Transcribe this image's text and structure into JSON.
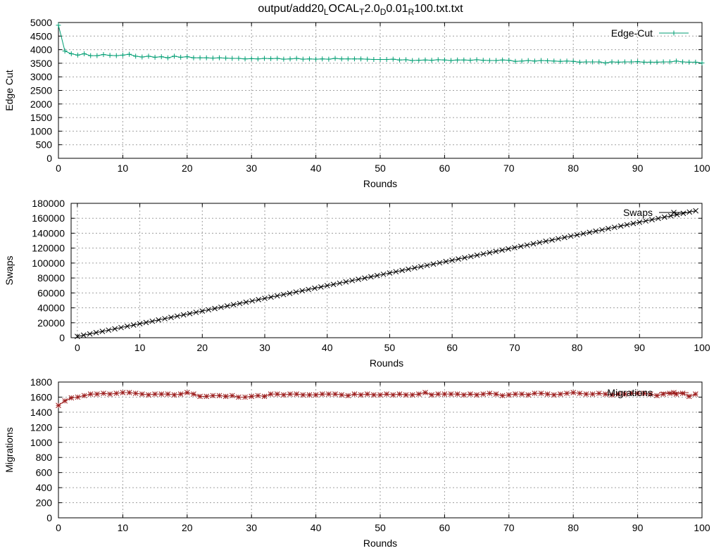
{
  "figure": {
    "title_parts": [
      {
        "text": "output/add20",
        "sub": false
      },
      {
        "text": "L",
        "sub": true
      },
      {
        "text": "OCAL",
        "sub": false
      },
      {
        "text": "T",
        "sub": true
      },
      {
        "text": "2.0",
        "sub": false
      },
      {
        "text": "D",
        "sub": true
      },
      {
        "text": "0.01",
        "sub": false
      },
      {
        "text": "R",
        "sub": true
      },
      {
        "text": "100.txt.txt",
        "sub": false
      }
    ]
  },
  "chart_data": [
    {
      "type": "line",
      "xlabel": "Rounds",
      "ylabel": "Edge Cut",
      "xlim": [
        0,
        100
      ],
      "ylim": [
        0,
        5000
      ],
      "xticks": [
        0,
        10,
        20,
        30,
        40,
        50,
        60,
        70,
        80,
        90,
        100
      ],
      "yticks": [
        0,
        500,
        1000,
        1500,
        2000,
        2500,
        3000,
        3500,
        4000,
        4500,
        5000
      ],
      "grid": true,
      "legend_position": "top-right",
      "series": [
        {
          "name": "Edge-Cut",
          "color": "#009e73",
          "marker": "plus",
          "x": [
            0,
            1,
            2,
            3,
            4,
            5,
            6,
            7,
            8,
            9,
            10,
            11,
            12,
            13,
            14,
            15,
            16,
            17,
            18,
            19,
            20,
            21,
            22,
            23,
            24,
            25,
            26,
            27,
            28,
            29,
            30,
            31,
            32,
            33,
            34,
            35,
            36,
            37,
            38,
            39,
            40,
            41,
            42,
            43,
            44,
            45,
            46,
            47,
            48,
            49,
            50,
            51,
            52,
            53,
            54,
            55,
            56,
            57,
            58,
            59,
            60,
            61,
            62,
            63,
            64,
            65,
            66,
            67,
            68,
            69,
            70,
            71,
            72,
            73,
            74,
            75,
            76,
            77,
            78,
            79,
            80,
            81,
            82,
            83,
            84,
            85,
            86,
            87,
            88,
            89,
            90,
            91,
            92,
            93,
            94,
            95,
            96,
            97,
            98,
            99,
            100
          ],
          "values": [
            4900,
            3950,
            3850,
            3800,
            3850,
            3780,
            3780,
            3820,
            3790,
            3780,
            3800,
            3830,
            3760,
            3730,
            3760,
            3720,
            3740,
            3700,
            3760,
            3720,
            3740,
            3700,
            3700,
            3700,
            3690,
            3700,
            3690,
            3680,
            3680,
            3660,
            3670,
            3660,
            3680,
            3670,
            3680,
            3650,
            3660,
            3680,
            3650,
            3660,
            3650,
            3660,
            3650,
            3680,
            3660,
            3660,
            3660,
            3660,
            3650,
            3640,
            3640,
            3640,
            3650,
            3620,
            3630,
            3600,
            3610,
            3620,
            3610,
            3630,
            3620,
            3600,
            3620,
            3620,
            3610,
            3630,
            3610,
            3600,
            3600,
            3620,
            3610,
            3570,
            3580,
            3600,
            3580,
            3600,
            3590,
            3580,
            3570,
            3580,
            3570,
            3540,
            3550,
            3550,
            3550,
            3510,
            3550,
            3540,
            3550,
            3550,
            3560,
            3540,
            3540,
            3540,
            3550,
            3550,
            3580,
            3550,
            3540,
            3540,
            3510
          ]
        }
      ]
    },
    {
      "type": "line",
      "xlabel": "Rounds",
      "ylabel": "Swaps",
      "xlim": [
        -1,
        100
      ],
      "ylim": [
        0,
        180000
      ],
      "xticks": [
        0,
        10,
        20,
        30,
        40,
        50,
        60,
        70,
        80,
        90,
        100
      ],
      "yticks": [
        0,
        20000,
        40000,
        60000,
        80000,
        100000,
        120000,
        140000,
        160000,
        180000
      ],
      "grid": true,
      "legend_position": "top-right",
      "series": [
        {
          "name": "Swaps",
          "color": "#000000",
          "marker": "cross",
          "x": [
            0,
            1,
            2,
            3,
            4,
            5,
            6,
            7,
            8,
            9,
            10,
            11,
            12,
            13,
            14,
            15,
            16,
            17,
            18,
            19,
            20,
            21,
            22,
            23,
            24,
            25,
            26,
            27,
            28,
            29,
            30,
            31,
            32,
            33,
            34,
            35,
            36,
            37,
            38,
            39,
            40,
            41,
            42,
            43,
            44,
            45,
            46,
            47,
            48,
            49,
            50,
            51,
            52,
            53,
            54,
            55,
            56,
            57,
            58,
            59,
            60,
            61,
            62,
            63,
            64,
            65,
            66,
            67,
            68,
            69,
            70,
            71,
            72,
            73,
            74,
            75,
            76,
            77,
            78,
            79,
            80,
            81,
            82,
            83,
            84,
            85,
            86,
            87,
            88,
            89,
            90,
            91,
            92,
            93,
            94,
            95,
            96,
            97,
            98,
            99
          ],
          "values": [
            1700,
            3400,
            5100,
            6800,
            8500,
            10200,
            11900,
            13600,
            15300,
            17000,
            18700,
            20400,
            22100,
            23800,
            25500,
            27200,
            28900,
            30600,
            32300,
            34000,
            35700,
            37400,
            39100,
            40800,
            42500,
            44200,
            45900,
            47600,
            49300,
            51000,
            52700,
            54400,
            56100,
            57800,
            59500,
            61200,
            62900,
            64600,
            66300,
            68000,
            69700,
            71400,
            73100,
            74800,
            76500,
            78200,
            79900,
            81600,
            83300,
            85000,
            86700,
            88400,
            90100,
            91800,
            93500,
            95200,
            96900,
            98600,
            100300,
            102000,
            103700,
            105400,
            107100,
            108800,
            110500,
            112200,
            113900,
            115600,
            117300,
            119000,
            120700,
            122400,
            124100,
            125800,
            127500,
            129200,
            130900,
            132600,
            134300,
            136000,
            137700,
            139400,
            141100,
            142800,
            144500,
            146200,
            147900,
            149600,
            151300,
            153000,
            154700,
            156400,
            158100,
            159800,
            161500,
            163200,
            164900,
            166600,
            168300,
            170000
          ]
        }
      ]
    },
    {
      "type": "line",
      "xlabel": "Rounds",
      "ylabel": "Migrations",
      "xlim": [
        0,
        100
      ],
      "ylim": [
        0,
        1800
      ],
      "xticks": [
        0,
        10,
        20,
        30,
        40,
        50,
        60,
        70,
        80,
        90,
        100
      ],
      "yticks": [
        0,
        200,
        400,
        600,
        800,
        1000,
        1200,
        1400,
        1600,
        1800
      ],
      "grid": true,
      "legend_position": "top-right",
      "series": [
        {
          "name": "Migrations",
          "color": "#9b1b1b",
          "marker": "star",
          "x": [
            0,
            1,
            2,
            3,
            4,
            5,
            6,
            7,
            8,
            9,
            10,
            11,
            12,
            13,
            14,
            15,
            16,
            17,
            18,
            19,
            20,
            21,
            22,
            23,
            24,
            25,
            26,
            27,
            28,
            29,
            30,
            31,
            32,
            33,
            34,
            35,
            36,
            37,
            38,
            39,
            40,
            41,
            42,
            43,
            44,
            45,
            46,
            47,
            48,
            49,
            50,
            51,
            52,
            53,
            54,
            55,
            56,
            57,
            58,
            59,
            60,
            61,
            62,
            63,
            64,
            65,
            66,
            67,
            68,
            69,
            70,
            71,
            72,
            73,
            74,
            75,
            76,
            77,
            78,
            79,
            80,
            81,
            82,
            83,
            84,
            85,
            86,
            87,
            88,
            89,
            90,
            91,
            92,
            93,
            94,
            95,
            96,
            97,
            98,
            99
          ],
          "values": [
            1490,
            1550,
            1590,
            1600,
            1620,
            1640,
            1640,
            1650,
            1640,
            1650,
            1660,
            1660,
            1650,
            1640,
            1630,
            1640,
            1640,
            1640,
            1630,
            1640,
            1660,
            1640,
            1610,
            1610,
            1620,
            1620,
            1610,
            1620,
            1600,
            1600,
            1610,
            1620,
            1610,
            1640,
            1640,
            1630,
            1640,
            1640,
            1630,
            1630,
            1630,
            1640,
            1640,
            1640,
            1630,
            1620,
            1640,
            1630,
            1640,
            1630,
            1630,
            1640,
            1630,
            1640,
            1630,
            1630,
            1640,
            1660,
            1630,
            1640,
            1640,
            1640,
            1640,
            1630,
            1640,
            1630,
            1640,
            1650,
            1640,
            1620,
            1630,
            1640,
            1640,
            1630,
            1650,
            1650,
            1640,
            1630,
            1640,
            1650,
            1660,
            1650,
            1640,
            1640,
            1650,
            1640,
            1630,
            1640,
            1640,
            1650,
            1650,
            1650,
            1640,
            1620,
            1640,
            1650,
            1640,
            1650,
            1610,
            1640
          ]
        }
      ]
    }
  ]
}
